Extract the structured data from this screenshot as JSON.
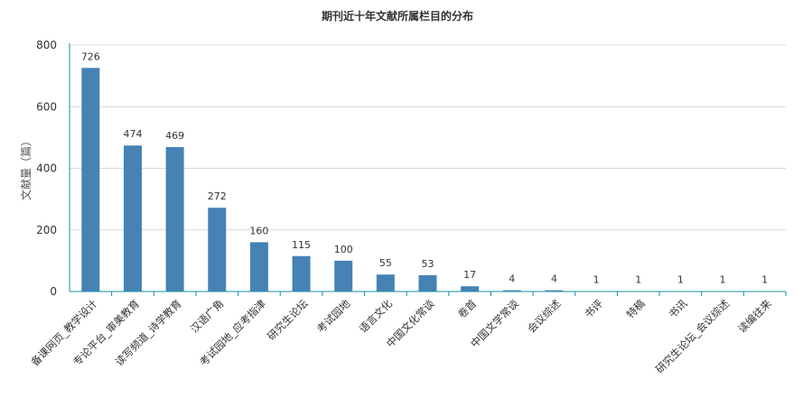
{
  "chart_data": {
    "type": "bar",
    "title": "期刊近十年文献所属栏目的分布",
    "xlabel": "",
    "ylabel": "文献量（篇）",
    "ylim": [
      0,
      800
    ],
    "yticks": [
      0,
      200,
      400,
      600,
      800
    ],
    "grid": true,
    "legend": "none",
    "bar_color": "#4682b4",
    "axis_color": "#1a8fa0",
    "grid_color": "#d9d9d9",
    "categories": [
      "备课网页_教学设计",
      "专论平台_审美教育",
      "读写频道_诗学教育",
      "汉语广角",
      "考试园地_应考指津",
      "研究生论坛",
      "考试园地",
      "语言文化",
      "中国文化常谈",
      "卷首",
      "中国文学常谈",
      "会议综述",
      "书评",
      "特稿",
      "书讯",
      "研究生论坛_会议综述",
      "读编往来"
    ],
    "values": [
      726,
      474,
      469,
      272,
      160,
      115,
      100,
      55,
      53,
      17,
      4,
      4,
      1,
      1,
      1,
      1,
      1
    ]
  }
}
